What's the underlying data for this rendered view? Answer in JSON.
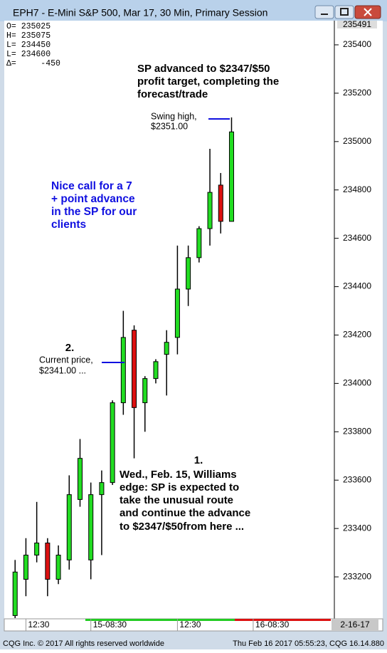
{
  "window_title": "EPH7 - E-Mini S&P 500, Mar 17, 30 Min, Primary Session",
  "chart_data": {
    "type": "candlestick",
    "open": [
      233040,
      233190,
      233290,
      233340,
      233190,
      233270,
      233520,
      233270,
      233540,
      233590,
      233920,
      234220,
      233920,
      234020,
      234120,
      234190,
      234390,
      234520,
      234640,
      234820,
      234670
    ],
    "high": [
      233270,
      233360,
      233510,
      233360,
      233330,
      233620,
      233770,
      233590,
      233640,
      233930,
      234300,
      234240,
      234030,
      234100,
      234220,
      234570,
      234570,
      234650,
      234970,
      234870,
      235100
    ],
    "low": [
      233020,
      233120,
      233260,
      233120,
      233170,
      233230,
      233490,
      233190,
      233290,
      233580,
      233870,
      233690,
      233800,
      234000,
      233950,
      234120,
      234320,
      234500,
      234570,
      234620,
      234670
    ],
    "close": [
      233220,
      233290,
      233340,
      233190,
      233290,
      233540,
      233690,
      233540,
      233590,
      233920,
      234190,
      233900,
      234020,
      234090,
      234170,
      234390,
      234520,
      234640,
      234790,
      234670,
      235040
    ],
    "up_color": "#22dd22",
    "down_color": "#dd1111",
    "ylim": [
      233000,
      235500
    ],
    "yticks": [
      233200,
      233400,
      233600,
      233800,
      234000,
      234200,
      234400,
      234600,
      234800,
      235000,
      235200,
      235400
    ],
    "xlim": [
      -1,
      29.5
    ],
    "xticks": [
      {
        "value": 1,
        "label": "12:30"
      },
      {
        "value": 7,
        "label": "15-08:30"
      },
      {
        "value": 15,
        "label": "12:30"
      },
      {
        "value": 22,
        "label": "16-08:30"
      }
    ],
    "date_label": "2-16-17",
    "last_label": "235491",
    "info_box": [
      "O= 235025",
      "H= 235075",
      "L= 234450",
      "L= 234600",
      "Δ=     -450"
    ],
    "annotations": {
      "target": [
        "SP advanced to $2347/$50",
        "profit target, completing the",
        "forecast/trade"
      ],
      "swing": [
        "Swing high,",
        "$2351.00"
      ],
      "call": [
        "Nice call for a 7",
        "+ point advance",
        "in the SP for our",
        "clients"
      ],
      "current_num": "2.",
      "current": [
        "Current price,",
        "$2341.00 ..."
      ],
      "edge_num": "1.",
      "edge": [
        "Wed., Feb. 15, Williams",
        "edge: SP is expected to",
        "take the unusual route",
        "and continue the advance",
        "to $2347/$50from here ..."
      ]
    }
  },
  "footer": {
    "left": "CQG Inc. © 2017 All rights reserved worldwide",
    "right": "Thu Feb 16 2017 05:55:23, CQG 16.14.880"
  }
}
